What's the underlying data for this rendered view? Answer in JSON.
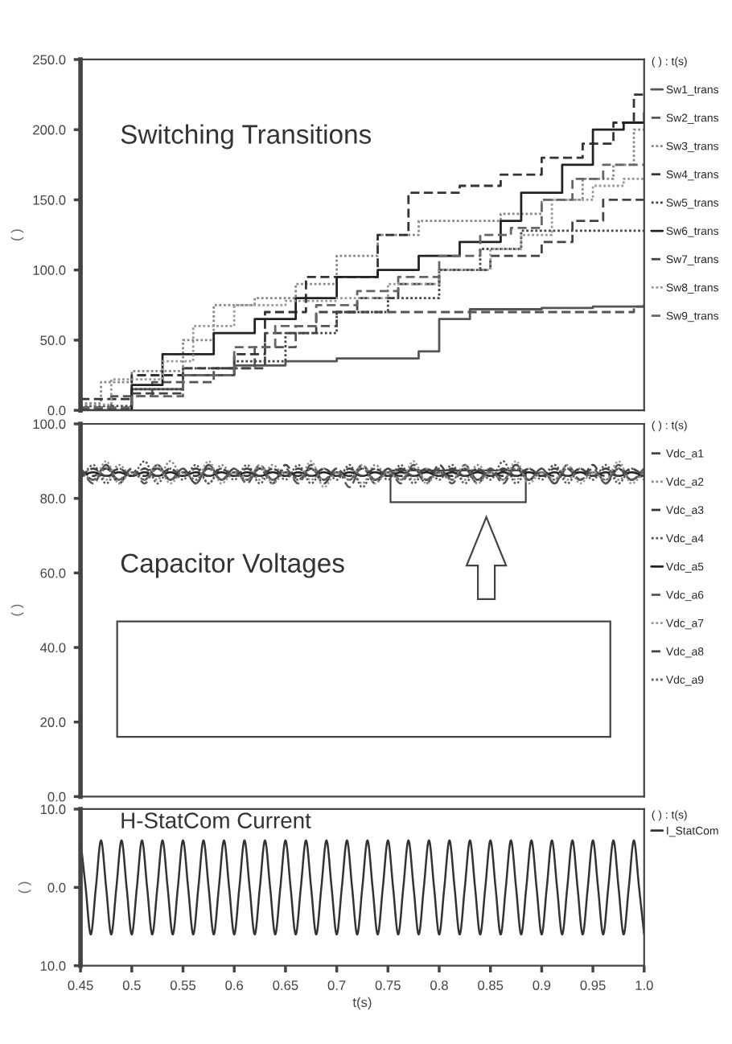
{
  "chart_data": [
    {
      "type": "step",
      "annotations": [
        "Switching Transitions"
      ],
      "ylabel": "( )",
      "legend_title": "( ) : t(s)",
      "legend": "right",
      "tick_labels": "y",
      "xlim": [
        0.45,
        1.0
      ],
      "ylim": [
        0,
        250
      ],
      "yticks": [
        {
          "value": 0,
          "label": "0.0"
        },
        {
          "value": 50,
          "label": "50.0"
        },
        {
          "value": 100,
          "label": "100.0"
        },
        {
          "value": 150,
          "label": "150.0"
        },
        {
          "value": 200,
          "label": "200.0"
        },
        {
          "value": 250,
          "label": "250.0"
        }
      ],
      "series": [
        {
          "name": "Sw1_trans",
          "color": "#555555",
          "line_style": "solid",
          "x": [
            0.45,
            0.5,
            0.55,
            0.6,
            0.65,
            0.7,
            0.75,
            0.78,
            0.8,
            0.83,
            0.9,
            0.95,
            1.0
          ],
          "values": [
            0,
            15,
            25,
            32,
            35,
            37,
            37,
            42,
            65,
            72,
            73,
            74,
            75
          ]
        },
        {
          "name": "Sw2_trans",
          "color": "#555555",
          "line_style": "dashed",
          "x": [
            0.45,
            0.48,
            0.52,
            0.58,
            0.62,
            0.66,
            0.7,
            0.75,
            0.82,
            0.97,
            0.99,
            1.0
          ],
          "values": [
            2,
            10,
            20,
            30,
            45,
            60,
            70,
            70,
            70,
            70,
            74,
            74
          ]
        },
        {
          "name": "Sw3_trans",
          "color": "#888888",
          "line_style": "dotted",
          "x": [
            0.45,
            0.47,
            0.5,
            0.55,
            0.58,
            0.62,
            0.66,
            0.7,
            0.74,
            0.78,
            0.82,
            0.86,
            0.9,
            0.94,
            0.97,
            0.99,
            1.0
          ],
          "values": [
            5,
            20,
            28,
            50,
            75,
            80,
            90,
            110,
            125,
            135,
            135,
            140,
            150,
            165,
            175,
            200,
            200
          ]
        },
        {
          "name": "Sw4_trans",
          "color": "#333333",
          "line_style": "dashed",
          "x": [
            0.45,
            0.5,
            0.55,
            0.6,
            0.63,
            0.67,
            0.7,
            0.74,
            0.77,
            0.82,
            0.86,
            0.9,
            0.94,
            0.97,
            0.99,
            1.0
          ],
          "values": [
            8,
            25,
            30,
            40,
            70,
            95,
            95,
            125,
            155,
            160,
            168,
            180,
            190,
            205,
            225,
            225
          ]
        },
        {
          "name": "Sw5_trans",
          "color": "#444444",
          "line_style": "dotted",
          "x": [
            0.45,
            0.5,
            0.55,
            0.6,
            0.65,
            0.7,
            0.75,
            0.8,
            0.84,
            0.88,
            1.0
          ],
          "values": [
            3,
            15,
            30,
            35,
            55,
            70,
            80,
            100,
            115,
            128,
            128
          ]
        },
        {
          "name": "Sw6_trans",
          "color": "#222222",
          "line_style": "solid",
          "x": [
            0.45,
            0.5,
            0.53,
            0.58,
            0.62,
            0.66,
            0.7,
            0.74,
            0.78,
            0.82,
            0.86,
            0.88,
            0.92,
            0.95,
            0.98,
            1.0
          ],
          "values": [
            0,
            18,
            40,
            55,
            65,
            80,
            95,
            100,
            110,
            120,
            135,
            155,
            175,
            200,
            205,
            212
          ]
        },
        {
          "name": "Sw7_trans",
          "color": "#444444",
          "line_style": "dashed",
          "x": [
            0.45,
            0.5,
            0.55,
            0.6,
            0.63,
            0.68,
            0.72,
            0.76,
            0.8,
            0.85,
            0.9,
            0.93,
            0.96,
            1.0
          ],
          "values": [
            1,
            12,
            25,
            30,
            55,
            70,
            80,
            90,
            100,
            110,
            120,
            135,
            150,
            150
          ]
        },
        {
          "name": "Sw8_trans",
          "color": "#999999",
          "line_style": "dotted",
          "x": [
            0.45,
            0.48,
            0.53,
            0.56,
            0.6,
            0.65,
            0.7,
            0.75,
            0.8,
            0.85,
            0.88,
            0.91,
            0.95,
            0.98,
            1.0
          ],
          "values": [
            4,
            22,
            35,
            60,
            75,
            78,
            80,
            90,
            100,
            115,
            125,
            150,
            160,
            165,
            165
          ]
        },
        {
          "name": "Sw9_trans",
          "color": "#666666",
          "line_style": "dashed",
          "x": [
            0.45,
            0.5,
            0.55,
            0.6,
            0.64,
            0.68,
            0.72,
            0.76,
            0.8,
            0.84,
            0.87,
            0.9,
            0.93,
            0.96,
            1.0
          ],
          "values": [
            2,
            10,
            25,
            45,
            60,
            75,
            85,
            95,
            110,
            125,
            130,
            150,
            165,
            175,
            175
          ]
        }
      ]
    },
    {
      "type": "line",
      "annotations": [
        "Capacitor Voltages"
      ],
      "ylabel": "( )",
      "legend_title": "( ) : t(s)",
      "legend": "right",
      "tick_labels": "y",
      "xlim": [
        0.45,
        1.0
      ],
      "ylim": [
        0,
        100
      ],
      "yticks": [
        {
          "value": 0,
          "label": "0.0"
        },
        {
          "value": 20,
          "label": "20.0"
        },
        {
          "value": 40,
          "label": "40.0"
        },
        {
          "value": 60,
          "label": "60.0"
        },
        {
          "value": 80,
          "label": "80.0"
        },
        {
          "value": 100,
          "label": "100.0"
        }
      ],
      "x": [
        0.45,
        0.4625,
        0.475,
        0.4875,
        0.5,
        0.5125,
        0.525,
        0.5375,
        0.55,
        0.5625,
        0.575,
        0.5875,
        0.6,
        0.6125,
        0.625,
        0.6375,
        0.65,
        0.6625,
        0.675,
        0.6875,
        0.7,
        0.7125,
        0.725,
        0.7375,
        0.75,
        0.7625,
        0.775,
        0.7875,
        0.8,
        0.8125,
        0.825,
        0.8375,
        0.85,
        0.8625,
        0.875,
        0.8875,
        0.9,
        0.9125,
        0.925,
        0.9375,
        0.95,
        0.9625,
        0.975,
        0.9875,
        1.0
      ],
      "series": [
        {
          "name": "Vdc_a1",
          "color": "#444444",
          "line_style": "dashed",
          "values": [
            88,
            85,
            89,
            84,
            88,
            85,
            89,
            85,
            88,
            84,
            89,
            85,
            88,
            85,
            88,
            84,
            89,
            85,
            88,
            84,
            88,
            85,
            89,
            84,
            88,
            85,
            88,
            84,
            89,
            85,
            88,
            84,
            88,
            85,
            89,
            85,
            88,
            84,
            88,
            85,
            89,
            84,
            88,
            85,
            87
          ]
        },
        {
          "name": "Vdc_a2",
          "color": "#888888",
          "line_style": "dotted",
          "values": [
            86,
            88,
            85,
            89,
            86,
            88,
            85,
            90,
            86,
            88,
            84,
            89,
            86,
            88,
            85,
            89,
            86,
            87,
            85,
            88,
            86,
            88,
            84,
            89,
            86,
            88,
            85,
            88,
            86,
            87,
            85,
            89,
            86,
            88,
            85,
            88,
            86,
            89,
            85,
            88,
            86,
            88,
            85,
            87,
            86
          ]
        },
        {
          "name": "Vdc_a3",
          "color": "#333333",
          "line_style": "dashed",
          "values": [
            87,
            86,
            88,
            85,
            87,
            86,
            88,
            85,
            87,
            86,
            88,
            85,
            87,
            86,
            88,
            85,
            87,
            86,
            88,
            85,
            87,
            86,
            88,
            85,
            87,
            86,
            88,
            85,
            87,
            86,
            88,
            85,
            87,
            86,
            88,
            85,
            87,
            86,
            88,
            85,
            87,
            86,
            88,
            85,
            87
          ]
        },
        {
          "name": "Vdc_a4",
          "color": "#555555",
          "line_style": "dotted",
          "values": [
            85,
            89,
            84,
            88,
            86,
            90,
            84,
            88,
            85,
            89,
            84,
            88,
            85,
            89,
            84,
            88,
            85,
            89,
            84,
            88,
            85,
            89,
            83,
            88,
            85,
            89,
            84,
            88,
            85,
            89,
            84,
            88,
            85,
            90,
            84,
            88,
            85,
            89,
            84,
            88,
            85,
            89,
            84,
            88,
            85
          ]
        },
        {
          "name": "Vdc_a5",
          "color": "#222222",
          "line_style": "solid",
          "values": [
            86,
            87,
            86,
            87,
            86,
            87,
            86,
            87,
            86,
            87,
            86,
            87,
            86,
            87,
            86,
            87,
            86,
            87,
            86,
            87,
            86,
            87,
            86,
            87,
            86,
            87,
            86,
            87,
            86,
            87,
            86,
            87,
            86,
            87,
            86,
            87,
            86,
            87,
            86,
            87,
            86,
            87,
            86,
            87,
            86
          ]
        },
        {
          "name": "Vdc_a6",
          "color": "#555555",
          "line_style": "dashed",
          "values": [
            88,
            84,
            89,
            85,
            88,
            84,
            89,
            85,
            88,
            84,
            89,
            85,
            88,
            84,
            89,
            85,
            88,
            84,
            89,
            85,
            88,
            83,
            89,
            85,
            88,
            84,
            89,
            85,
            88,
            84,
            89,
            85,
            88,
            84,
            89,
            85,
            88,
            84,
            89,
            85,
            88,
            84,
            89,
            85,
            88
          ]
        },
        {
          "name": "Vdc_a7",
          "color": "#999999",
          "line_style": "dotted",
          "values": [
            87,
            85,
            90,
            84,
            87,
            85,
            89,
            84,
            87,
            85,
            90,
            84,
            87,
            85,
            89,
            84,
            87,
            85,
            90,
            83,
            87,
            85,
            89,
            84,
            87,
            85,
            90,
            84,
            87,
            85,
            89,
            84,
            87,
            85,
            90,
            84,
            87,
            85,
            89,
            84,
            87,
            85,
            90,
            84,
            87
          ]
        },
        {
          "name": "Vdc_a8",
          "color": "#444444",
          "line_style": "dashed",
          "values": [
            86,
            88,
            86,
            88,
            86,
            88,
            86,
            88,
            86,
            88,
            86,
            88,
            86,
            88,
            86,
            88,
            86,
            88,
            86,
            88,
            86,
            88,
            86,
            88,
            86,
            88,
            86,
            88,
            86,
            88,
            86,
            88,
            86,
            88,
            86,
            88,
            86,
            88,
            86,
            88,
            86,
            88,
            86,
            88,
            86
          ]
        },
        {
          "name": "Vdc_a9",
          "color": "#666666",
          "line_style": "dotted",
          "values": [
            87,
            85,
            88,
            85,
            87,
            85,
            88,
            85,
            87,
            85,
            88,
            85,
            87,
            85,
            88,
            85,
            87,
            85,
            88,
            85,
            87,
            85,
            88,
            85,
            87,
            85,
            88,
            85,
            87,
            85,
            88,
            85,
            87,
            85,
            88,
            85,
            87,
            85,
            88,
            85,
            87,
            85,
            88,
            85,
            87
          ]
        }
      ]
    },
    {
      "type": "line",
      "annotations": [
        "H-StatCom Current"
      ],
      "ylabel": "( )",
      "xlabel": "t(s)",
      "legend_title": "( ) : t(s)",
      "legend": "right",
      "xlim": [
        0.45,
        1.0
      ],
      "ylim": [
        -10,
        10
      ],
      "xticks": [
        0.45,
        0.5,
        0.55,
        0.6,
        0.65,
        0.7,
        0.75,
        0.8,
        0.85,
        0.9,
        0.95,
        {
          "value": 1.0,
          "label": "1.0"
        }
      ],
      "yticks": [
        {
          "value": -10,
          "label": "10.0"
        },
        {
          "value": 0,
          "label": "0.0"
        },
        {
          "value": 10,
          "label": "10.0"
        }
      ],
      "x": [
        0.45,
        0.455,
        0.46,
        0.465,
        0.47,
        0.475,
        0.48,
        0.485,
        0.49,
        0.495,
        0.5,
        0.505,
        0.51,
        0.515,
        0.52,
        0.525,
        0.53,
        0.535,
        0.54,
        0.545,
        0.55,
        0.555,
        0.56,
        0.565,
        0.57,
        0.575,
        0.58,
        0.585,
        0.59,
        0.595,
        0.6,
        0.605,
        0.61,
        0.615,
        0.62,
        0.625,
        0.63,
        0.635,
        0.64,
        0.645,
        0.65,
        0.655,
        0.66,
        0.665,
        0.67,
        0.675,
        0.68,
        0.685,
        0.69,
        0.695,
        0.7,
        0.705,
        0.71,
        0.715,
        0.72,
        0.725,
        0.73,
        0.735,
        0.74,
        0.745,
        0.75,
        0.755,
        0.76,
        0.765,
        0.77,
        0.775,
        0.78,
        0.785,
        0.79,
        0.795,
        0.8,
        0.805,
        0.81,
        0.815,
        0.82,
        0.825,
        0.83,
        0.835,
        0.84,
        0.845,
        0.85,
        0.855,
        0.86,
        0.865,
        0.87,
        0.875,
        0.88,
        0.885,
        0.89,
        0.895,
        0.9,
        0.905,
        0.91,
        0.915,
        0.92,
        0.925,
        0.93,
        0.935,
        0.94,
        0.945,
        0.95,
        0.955,
        0.96,
        0.965,
        0.97,
        0.975,
        0.98,
        0.985,
        0.99,
        0.995,
        1.0
      ],
      "series": [
        {
          "name": "I_StatCom",
          "color": "#333333",
          "line_style": "solid",
          "values": [
            6,
            0,
            -6,
            0,
            6,
            0,
            -6,
            0,
            6,
            0,
            -6,
            0,
            6,
            0,
            -6,
            0,
            6,
            0,
            -6,
            0,
            6,
            0,
            -6,
            0,
            6,
            0,
            -6,
            0,
            6,
            0,
            -6,
            0,
            6,
            0,
            -6,
            0,
            6,
            0,
            -6,
            0,
            6,
            0,
            -6,
            0,
            6,
            0,
            -6,
            0,
            6,
            0,
            -6,
            0,
            6,
            0,
            -6,
            0,
            6,
            0,
            -6,
            0,
            6,
            0,
            -6,
            0,
            6,
            0,
            -6,
            0,
            6,
            0,
            -6,
            0,
            6,
            0,
            -6,
            0,
            6,
            0,
            -6,
            0,
            6,
            0,
            -6,
            0,
            6,
            0,
            -6,
            0,
            6,
            0,
            -6,
            0,
            6,
            0,
            -6,
            0,
            6,
            0,
            -6,
            0,
            6,
            0,
            -6,
            0,
            6,
            0,
            -6,
            0,
            6,
            0,
            -6
          ]
        }
      ]
    }
  ]
}
